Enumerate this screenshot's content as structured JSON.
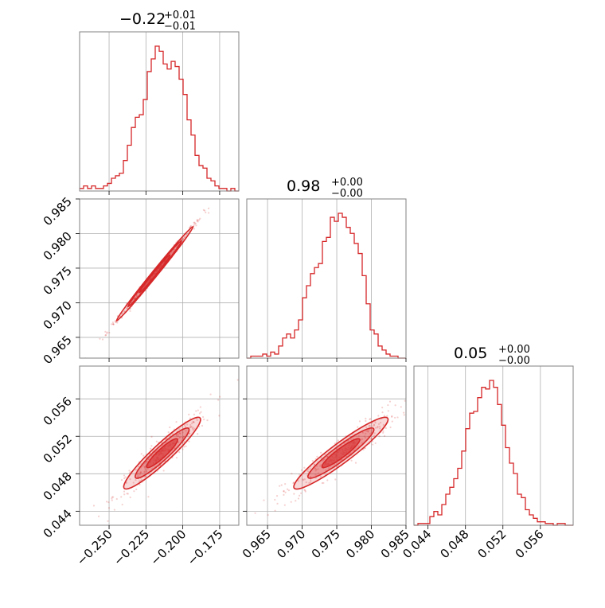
{
  "chart_data": {
    "type": "corner",
    "color": "#d62728",
    "parameters": [
      {
        "id": "p1",
        "title_median": "−0.22",
        "title_plus": "+0.01",
        "title_minus": "−0.01",
        "range": [
          -0.27,
          -0.162
        ],
        "ticks": [
          -0.25,
          -0.225,
          -0.2,
          -0.175
        ],
        "tick_labels": [
          "−0.250",
          "−0.225",
          "−0.200",
          "−0.175"
        ],
        "hist_edges": [
          -0.27,
          -0.162
        ],
        "hist_counts": [
          1,
          2,
          1,
          2,
          1,
          1,
          2,
          3,
          5,
          6,
          7,
          12,
          18,
          25,
          29,
          30,
          36,
          47,
          52,
          57,
          55,
          50,
          48,
          51,
          49,
          44,
          38,
          28,
          22,
          14,
          10,
          9,
          5,
          4,
          2,
          1,
          1,
          0,
          1,
          0
        ]
      },
      {
        "id": "p2",
        "title_median": "0.98",
        "title_plus": "+0.00",
        "title_minus": "−0.00",
        "range": [
          0.962,
          0.985
        ],
        "ticks": [
          0.965,
          0.97,
          0.975,
          0.98,
          0.985
        ],
        "tick_labels": [
          "0.965",
          "0.970",
          "0.975",
          "0.980",
          "0.985"
        ],
        "hist_edges": [
          0.962,
          0.985
        ],
        "hist_counts": [
          0,
          1,
          1,
          1,
          2,
          1,
          3,
          2,
          6,
          10,
          12,
          10,
          14,
          19,
          30,
          36,
          42,
          45,
          47,
          58,
          60,
          70,
          68,
          72,
          70,
          65,
          62,
          57,
          52,
          41,
          27,
          14,
          12,
          6,
          4,
          2,
          1,
          1,
          0,
          0
        ]
      },
      {
        "id": "p3",
        "title_median": "0.05",
        "title_plus": "+0.00",
        "title_minus": "−0.00",
        "range": [
          0.0425,
          0.0595
        ],
        "ticks": [
          0.044,
          0.048,
          0.052,
          0.056
        ],
        "tick_labels": [
          "0.044",
          "0.048",
          "0.052",
          "0.056"
        ],
        "hist_edges": [
          0.0425,
          0.0595
        ],
        "hist_counts": [
          0,
          1,
          1,
          1,
          5,
          8,
          6,
          12,
          18,
          22,
          27,
          33,
          43,
          56,
          65,
          66,
          74,
          80,
          79,
          84,
          80,
          70,
          58,
          45,
          36,
          30,
          18,
          16,
          9,
          6,
          4,
          2,
          2,
          1,
          1,
          0,
          1,
          1,
          0,
          0
        ]
      }
    ],
    "pairs": [
      {
        "x_param": "p1",
        "y_param": "p2",
        "x_center": -0.219,
        "y_center": 0.9742,
        "x_sd": 0.013,
        "corr": 0.998,
        "slope": 0.2615
      },
      {
        "x_param": "p1",
        "y_param": "p3",
        "x_center": -0.214,
        "y_center": 0.0502,
        "x_sd": 0.013,
        "corr": 0.95,
        "slope": 0.1395
      },
      {
        "x_param": "p2",
        "y_param": "p3",
        "x_center": 0.9756,
        "y_center": 0.0502,
        "x_sd": 0.0034,
        "corr": 0.95,
        "slope": 0.5333
      }
    ],
    "grid": true
  }
}
